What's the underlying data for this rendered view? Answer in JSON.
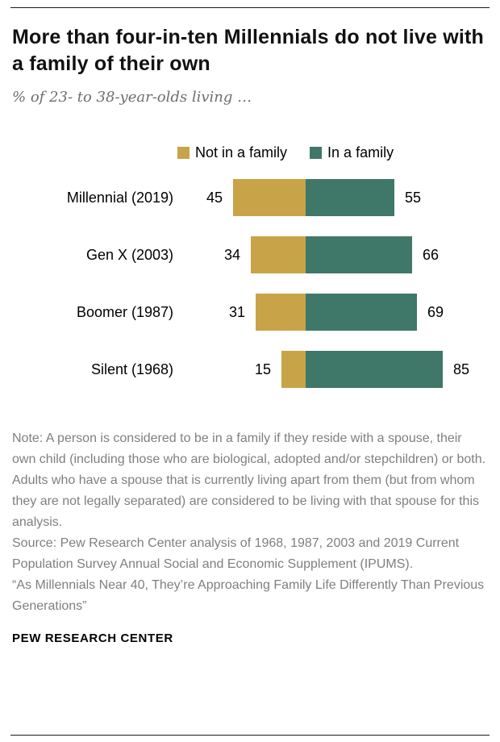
{
  "meta": {
    "title": "More than four-in-ten Millennials do not live with a family of their own",
    "subtitle": "% of 23- to 38-year-olds living …",
    "footer": "PEW RESEARCH CENTER"
  },
  "notes": {
    "note": "Note: A person is considered to be in a family if they reside with a spouse, their own child (including those who are biological, adopted and/or stepchildren) or both. Adults who have a spouse that is currently living apart from them (but from whom they are not legally separated) are considered to be living with that spouse for this analysis.",
    "source": "Source: Pew Research Center analysis of 1968, 1987, 2003 and 2019 Current Population Survey Annual Social and Economic Supplement (IPUMS).",
    "report": "“As Millennials Near 40, They’re Approaching Family Life Differently Than Previous Generations”"
  },
  "chart_data": {
    "type": "bar",
    "orientation": "horizontal-diverging",
    "title": "More than four-in-ten Millennials do not live with a family of their own",
    "subtitle": "% of 23- to 38-year-olds living …",
    "categories": [
      "Millennial (2019)",
      "Gen X (2003)",
      "Boomer (1987)",
      "Silent (1968)"
    ],
    "series": [
      {
        "name": "Not in a family",
        "color": "#C9A348",
        "values": [
          45,
          34,
          31,
          15
        ]
      },
      {
        "name": "In a family",
        "color": "#3F7769",
        "values": [
          55,
          66,
          69,
          85
        ]
      }
    ],
    "xlim": [
      0,
      100
    ],
    "value_labels": true,
    "legend_position": "top-center",
    "grid": false
  }
}
